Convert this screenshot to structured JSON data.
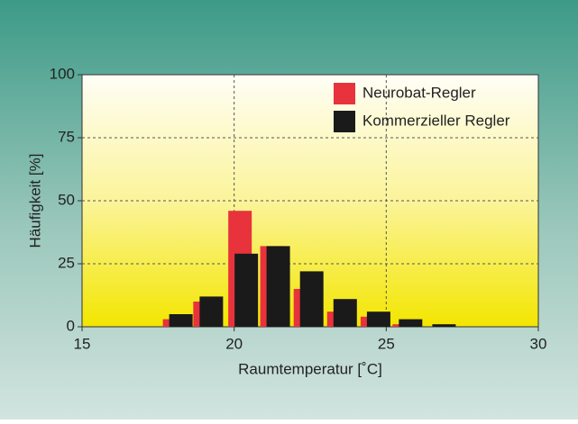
{
  "chart_data": {
    "type": "bar",
    "xlabel": "Raumtemperatur [˚C]",
    "ylabel": "Häufigkeit [%]",
    "x": [
      18.25,
      19.25,
      20.4,
      21.45,
      22.55,
      23.65,
      24.75,
      25.8,
      26.9
    ],
    "series": [
      {
        "name": "Neurobat-Regler",
        "color": "#e8323c",
        "values": [
          3,
          10,
          46,
          32,
          15,
          6,
          4,
          1,
          0
        ]
      },
      {
        "name": "Kommerzieller Regler",
        "color": "#1a1a1a",
        "values": [
          5,
          12,
          29,
          32,
          22,
          11,
          6,
          3,
          1
        ]
      }
    ],
    "xlim": [
      15,
      30
    ],
    "xticks": [
      15,
      20,
      25,
      30
    ],
    "ylim": [
      0,
      100
    ],
    "yticks": [
      0,
      25,
      50,
      75,
      100
    ],
    "grid": true,
    "legend": "upper right"
  }
}
